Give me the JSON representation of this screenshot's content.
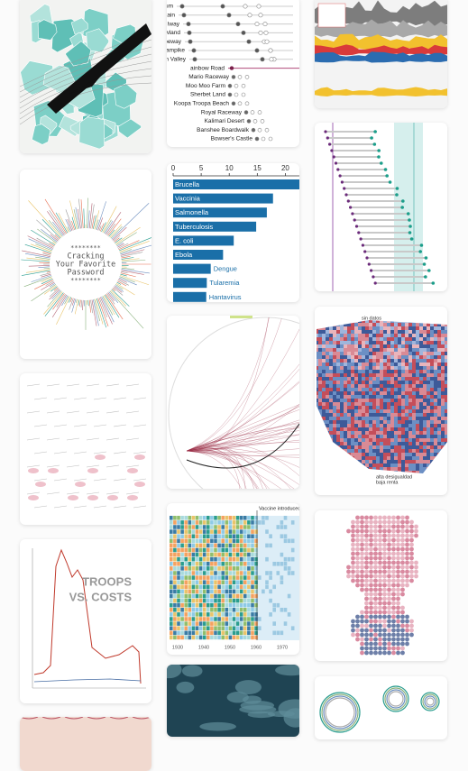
{
  "password": {
    "lines": [
      "********",
      "Cracking",
      "Your Favorite",
      "Password",
      "********"
    ]
  },
  "troops": {
    "lines": [
      "TROOPS",
      "VS. COSTS"
    ]
  },
  "kart": {
    "tracks": [
      "um",
      "tain",
      "lway",
      "wland",
      "oeway",
      "'ampike",
      "h Valley",
      "ainbow Road",
      "Mario Raceway",
      "Moo Moo Farm",
      "Sherbet Land",
      "Koopa Troopa Beach",
      "Royal Raceway",
      "Kalimari Desert",
      "Banshee Boardwalk",
      "Bowser's Castle"
    ]
  },
  "chart_data": {
    "type": "bar",
    "categories": [
      "Brucella",
      "Vaccinia",
      "Salmonella",
      "Tuberculosis",
      "E. coli",
      "Ebola",
      "Dengue",
      "Tularemia",
      "Hantavirus"
    ],
    "values": [
      23,
      17.8,
      16.7,
      14.8,
      10.8,
      8.9,
      6.7,
      6,
      5.9
    ],
    "color": "#1a6fa8",
    "xlim": [
      0,
      22.5
    ],
    "xticks": [
      0,
      5,
      10,
      15,
      20
    ]
  },
  "vaccine": {
    "note": "Vaccine introduced",
    "years": [
      "1930",
      "1940",
      "1950",
      "1960",
      "1970"
    ]
  },
  "spain": {
    "top_note": "sin datos",
    "bottom_note": [
      "alta desigualdad",
      "baja renta"
    ]
  }
}
